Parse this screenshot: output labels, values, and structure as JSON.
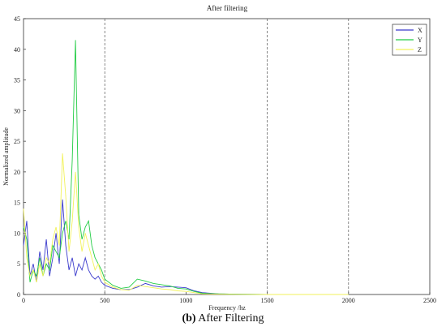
{
  "caption": {
    "label": "(b)",
    "text": "After Filtering"
  },
  "chart_data": {
    "type": "line",
    "title": "After filtering",
    "xlabel": "Frequency /hz",
    "ylabel": "Normalized amplitude",
    "xlim": [
      0,
      2500
    ],
    "ylim": [
      0,
      45
    ],
    "xticks": [
      0,
      500,
      1000,
      1500,
      2000,
      2500
    ],
    "yticks": [
      0,
      5,
      10,
      15,
      20,
      25,
      30,
      35,
      40,
      45
    ],
    "grid": "dashed vertical lines at 500, 1500, 2000",
    "legend_position": "top-right",
    "series": [
      {
        "name": "X",
        "color": "#3a3acc",
        "x": [
          0,
          20,
          40,
          60,
          80,
          100,
          120,
          140,
          160,
          180,
          200,
          220,
          240,
          260,
          280,
          300,
          320,
          340,
          360,
          380,
          400,
          420,
          440,
          460,
          480,
          500,
          550,
          600,
          650,
          700,
          750,
          800,
          850,
          900,
          950,
          1000,
          1050,
          1100,
          1200,
          1300,
          1500,
          2000
        ],
        "values": [
          8,
          12,
          3,
          5,
          2,
          7,
          4,
          9,
          3,
          6,
          10,
          5,
          15.5,
          8,
          4,
          6,
          3,
          5,
          4,
          6,
          4,
          3,
          2.5,
          3,
          2,
          1.5,
          1,
          0.8,
          0.8,
          1.2,
          1.8,
          1.4,
          1.2,
          1.3,
          1.2,
          1.1,
          0.6,
          0.3,
          0.1,
          0.05,
          0,
          0
        ]
      },
      {
        "name": "Y",
        "color": "#22cc44",
        "x": [
          0,
          20,
          40,
          60,
          80,
          100,
          120,
          140,
          160,
          180,
          200,
          220,
          240,
          260,
          280,
          300,
          320,
          340,
          360,
          380,
          400,
          420,
          440,
          460,
          480,
          500,
          550,
          600,
          650,
          700,
          750,
          800,
          850,
          900,
          950,
          1000,
          1050,
          1100,
          1200,
          1300,
          1500,
          2000
        ],
        "values": [
          11,
          9,
          2,
          4,
          3,
          6,
          3,
          5,
          4,
          8,
          7,
          6,
          10,
          12,
          9,
          22,
          41.5,
          13,
          9,
          11,
          12,
          8,
          6,
          5,
          4,
          2.5,
          1.5,
          1,
          1.2,
          2.5,
          2.2,
          1.8,
          1.6,
          1.4,
          1,
          0.9,
          0.5,
          0.2,
          0.1,
          0.05,
          0,
          0
        ]
      },
      {
        "name": "Z",
        "color": "#f2f25a",
        "x": [
          0,
          20,
          40,
          60,
          80,
          100,
          120,
          140,
          160,
          180,
          200,
          220,
          240,
          260,
          280,
          300,
          320,
          340,
          360,
          380,
          400,
          420,
          440,
          460,
          480,
          500,
          550,
          600,
          650,
          700,
          750,
          800,
          850,
          900,
          950,
          1000,
          1050,
          1100,
          1200,
          1300,
          1500,
          2000
        ],
        "values": [
          14,
          6,
          3,
          4,
          2,
          5,
          3,
          6,
          5,
          9,
          11,
          8,
          23,
          16,
          7,
          12,
          20,
          11,
          7,
          10,
          8,
          6,
          4,
          5,
          3,
          2,
          1.2,
          0.8,
          0.7,
          1.5,
          1.3,
          1.1,
          0.9,
          0.8,
          0.6,
          0.5,
          0.3,
          0.1,
          0.05,
          0.02,
          0,
          0
        ]
      }
    ]
  }
}
